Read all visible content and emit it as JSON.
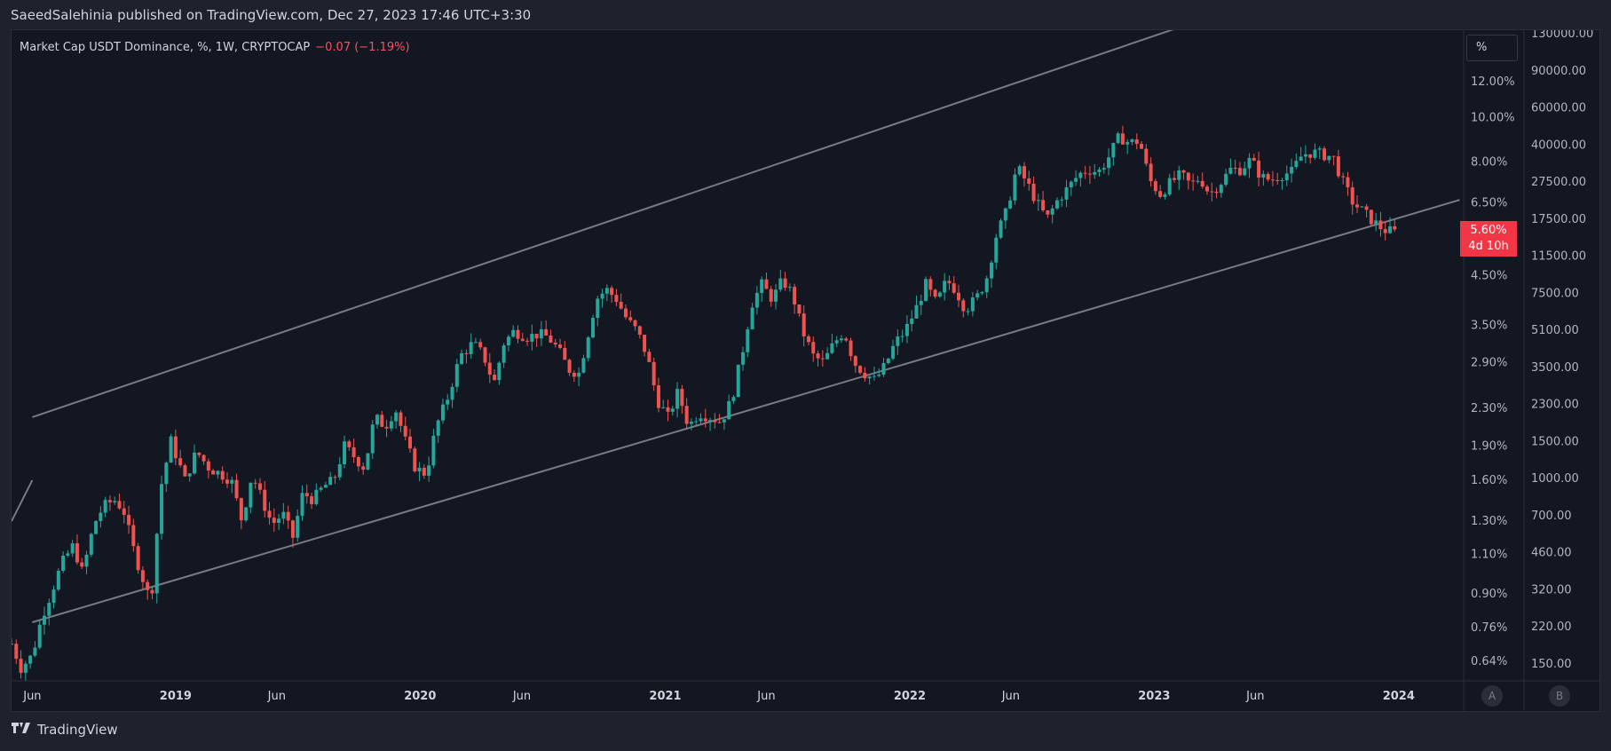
{
  "header": {
    "text": "SaeedSalehinia published on TradingView.com, Dec 27, 2023 17:46 UTC+3:30"
  },
  "legend": {
    "series": "Market Cap USDT Dominance, %, 1W, CRYPTOCAP",
    "change": "−0.07 (−1.19%)"
  },
  "unit_label": "%",
  "price_label": {
    "value": "5.60%",
    "countdown": "4d 10h"
  },
  "buttons": {
    "a": "A",
    "b": "B"
  },
  "footer": {
    "brand": "TradingView",
    "logo_icon": "tradingview-logo-icon"
  },
  "colors": {
    "up": "#26a69a",
    "down": "#ef5350",
    "background": "#131722",
    "channel": "#787b86"
  },
  "chart_data": {
    "type": "candlestick",
    "timeframe": "1W",
    "scale": "log",
    "y_unit": "%",
    "ylim": [
      0.58,
      15.5
    ],
    "x_range": [
      "2018-05-01",
      "2024-04-07"
    ],
    "yticks_left": [
      "12.00%",
      "10.00%",
      "8.00%",
      "6.50%",
      "4.50%",
      "3.50%",
      "2.90%",
      "2.30%",
      "1.90%",
      "1.60%",
      "1.30%",
      "1.10%",
      "0.90%",
      "0.76%",
      "0.64%"
    ],
    "yticks_left_values": [
      12,
      10,
      8,
      6.5,
      4.5,
      3.5,
      2.9,
      2.3,
      1.9,
      1.6,
      1.3,
      1.1,
      0.9,
      0.76,
      0.64
    ],
    "yticks_right": [
      "130000.00",
      "90000.00",
      "60000.00",
      "40000.00",
      "27500.00",
      "17500.00",
      "11500.00",
      "7500.00",
      "5100.00",
      "3500.00",
      "2300.00",
      "1500.00",
      "1000.00",
      "700.00",
      "460.00",
      "320.00",
      "220.00",
      "150.00"
    ],
    "yticks_right_values": [
      130000,
      90000,
      60000,
      40000,
      27500,
      17500,
      11500,
      7500,
      5100,
      3500,
      2300,
      1500,
      1000,
      700,
      460,
      320,
      220,
      150
    ],
    "xticks": [
      {
        "label": "Jun",
        "date": "2018-06-01",
        "bold": false
      },
      {
        "label": "2019",
        "date": "2019-01-01",
        "bold": true
      },
      {
        "label": "Jun",
        "date": "2019-06-01",
        "bold": false
      },
      {
        "label": "2020",
        "date": "2020-01-01",
        "bold": true
      },
      {
        "label": "Jun",
        "date": "2020-06-01",
        "bold": false
      },
      {
        "label": "2021",
        "date": "2021-01-01",
        "bold": true
      },
      {
        "label": "Jun",
        "date": "2021-06-01",
        "bold": false
      },
      {
        "label": "2022",
        "date": "2022-01-01",
        "bold": true
      },
      {
        "label": "Jun",
        "date": "2022-06-01",
        "bold": false
      },
      {
        "label": "2023",
        "date": "2023-01-01",
        "bold": true
      },
      {
        "label": "Jun",
        "date": "2023-06-01",
        "bold": false
      },
      {
        "label": "2024",
        "date": "2024-01-01",
        "bold": true
      }
    ],
    "closes": [
      [
        "2018-05-01",
        0.7
      ],
      [
        "2018-05-15",
        0.62
      ],
      [
        "2018-06-01",
        0.66
      ],
      [
        "2018-06-15",
        0.8
      ],
      [
        "2018-07-01",
        0.92
      ],
      [
        "2018-07-15",
        1.05
      ],
      [
        "2018-08-01",
        1.15
      ],
      [
        "2018-08-15",
        1.0
      ],
      [
        "2018-09-01",
        1.28
      ],
      [
        "2018-09-15",
        1.4
      ],
      [
        "2018-10-01",
        1.45
      ],
      [
        "2018-10-15",
        1.38
      ],
      [
        "2018-11-01",
        1.1
      ],
      [
        "2018-11-25",
        0.86
      ],
      [
        "2018-12-10",
        1.55
      ],
      [
        "2018-12-25",
        1.95
      ],
      [
        "2019-01-15",
        1.6
      ],
      [
        "2019-02-01",
        1.85
      ],
      [
        "2019-02-20",
        1.7
      ],
      [
        "2019-03-10",
        1.65
      ],
      [
        "2019-03-25",
        1.6
      ],
      [
        "2019-04-10",
        1.3
      ],
      [
        "2019-04-25",
        1.65
      ],
      [
        "2019-05-10",
        1.45
      ],
      [
        "2019-05-25",
        1.28
      ],
      [
        "2019-06-10",
        1.35
      ],
      [
        "2019-06-25",
        1.2
      ],
      [
        "2019-07-10",
        1.5
      ],
      [
        "2019-07-25",
        1.45
      ],
      [
        "2019-08-10",
        1.55
      ],
      [
        "2019-08-25",
        1.6
      ],
      [
        "2019-09-10",
        1.9
      ],
      [
        "2019-09-25",
        1.8
      ],
      [
        "2019-10-10",
        1.7
      ],
      [
        "2019-10-25",
        2.2
      ],
      [
        "2019-11-10",
        2.1
      ],
      [
        "2019-11-25",
        2.3
      ],
      [
        "2019-12-10",
        1.95
      ],
      [
        "2019-12-25",
        1.7
      ],
      [
        "2020-01-10",
        1.65
      ],
      [
        "2020-01-25",
        2.1
      ],
      [
        "2020-02-10",
        2.4
      ],
      [
        "2020-03-01",
        3.0
      ],
      [
        "2020-03-20",
        3.2
      ],
      [
        "2020-04-05",
        3.0
      ],
      [
        "2020-04-20",
        2.6
      ],
      [
        "2020-05-05",
        3.2
      ],
      [
        "2020-05-20",
        3.4
      ],
      [
        "2020-06-10",
        3.3
      ],
      [
        "2020-06-25",
        3.35
      ],
      [
        "2020-07-10",
        3.3
      ],
      [
        "2020-07-25",
        3.1
      ],
      [
        "2020-08-10",
        2.8
      ],
      [
        "2020-08-25",
        2.75
      ],
      [
        "2020-09-20",
        4.0
      ],
      [
        "2020-10-05",
        4.2
      ],
      [
        "2020-10-20",
        4.0
      ],
      [
        "2020-11-05",
        3.6
      ],
      [
        "2020-11-20",
        3.4
      ],
      [
        "2020-12-05",
        3.0
      ],
      [
        "2020-12-20",
        2.4
      ],
      [
        "2021-01-05",
        2.2
      ],
      [
        "2021-01-20",
        2.5
      ],
      [
        "2021-02-05",
        2.1
      ],
      [
        "2021-02-20",
        2.25
      ],
      [
        "2021-03-10",
        2.2
      ],
      [
        "2021-03-25",
        2.15
      ],
      [
        "2021-04-10",
        2.4
      ],
      [
        "2021-04-25",
        3.0
      ],
      [
        "2021-05-10",
        3.9
      ],
      [
        "2021-05-25",
        4.3
      ],
      [
        "2021-06-10",
        4.0
      ],
      [
        "2021-06-25",
        4.4
      ],
      [
        "2021-07-10",
        4.1
      ],
      [
        "2021-07-25",
        3.4
      ],
      [
        "2021-08-10",
        3.0
      ],
      [
        "2021-08-25",
        2.9
      ],
      [
        "2021-09-10",
        3.2
      ],
      [
        "2021-09-25",
        3.4
      ],
      [
        "2021-10-10",
        2.9
      ],
      [
        "2021-10-25",
        2.75
      ],
      [
        "2021-11-10",
        2.65
      ],
      [
        "2021-11-25",
        2.85
      ],
      [
        "2021-12-10",
        3.2
      ],
      [
        "2021-12-25",
        3.4
      ],
      [
        "2022-01-10",
        3.8
      ],
      [
        "2022-01-25",
        4.3
      ],
      [
        "2022-02-10",
        3.9
      ],
      [
        "2022-02-25",
        4.4
      ],
      [
        "2022-03-10",
        4.2
      ],
      [
        "2022-03-25",
        3.8
      ],
      [
        "2022-04-10",
        4.0
      ],
      [
        "2022-04-25",
        4.4
      ],
      [
        "2022-05-10",
        5.5
      ],
      [
        "2022-05-25",
        6.2
      ],
      [
        "2022-06-10",
        7.8
      ],
      [
        "2022-06-25",
        7.2
      ],
      [
        "2022-07-10",
        6.5
      ],
      [
        "2022-07-25",
        6.0
      ],
      [
        "2022-08-10",
        6.6
      ],
      [
        "2022-08-25",
        7.0
      ],
      [
        "2022-09-10",
        7.5
      ],
      [
        "2022-09-25",
        7.7
      ],
      [
        "2022-10-10",
        7.6
      ],
      [
        "2022-10-25",
        8.2
      ],
      [
        "2022-11-10",
        9.1
      ],
      [
        "2022-11-25",
        8.8
      ],
      [
        "2022-12-10",
        8.9
      ],
      [
        "2022-12-25",
        7.3
      ],
      [
        "2023-01-10",
        6.8
      ],
      [
        "2023-01-25",
        7.2
      ],
      [
        "2023-02-10",
        7.5
      ],
      [
        "2023-02-25",
        7.1
      ],
      [
        "2023-03-10",
        7.4
      ],
      [
        "2023-03-25",
        6.8
      ],
      [
        "2023-04-10",
        7.2
      ],
      [
        "2023-04-25",
        7.7
      ],
      [
        "2023-05-10",
        7.7
      ],
      [
        "2023-05-25",
        8.1
      ],
      [
        "2023-06-10",
        7.4
      ],
      [
        "2023-06-25",
        7.3
      ],
      [
        "2023-07-10",
        7.5
      ],
      [
        "2023-07-25",
        7.6
      ],
      [
        "2023-08-10",
        8.3
      ],
      [
        "2023-08-25",
        8.4
      ],
      [
        "2023-09-10",
        8.3
      ],
      [
        "2023-09-25",
        8.2
      ],
      [
        "2023-10-10",
        7.2
      ],
      [
        "2023-10-25",
        6.5
      ],
      [
        "2023-11-10",
        6.2
      ],
      [
        "2023-11-25",
        5.9
      ],
      [
        "2023-12-10",
        5.67
      ],
      [
        "2023-12-27",
        5.6
      ]
    ],
    "channel": [
      {
        "name": "upper",
        "points": [
          [
            "2018-06-01",
            2.2
          ],
          [
            "2023-06-01",
            18.0
          ]
        ]
      },
      {
        "name": "lower",
        "points": [
          [
            "2018-06-01",
            0.78
          ],
          [
            "2024-04-01",
            6.6
          ]
        ]
      },
      {
        "name": "fragment",
        "points": [
          [
            "2018-05-01",
            1.3
          ],
          [
            "2018-06-01",
            1.6
          ]
        ]
      }
    ]
  }
}
